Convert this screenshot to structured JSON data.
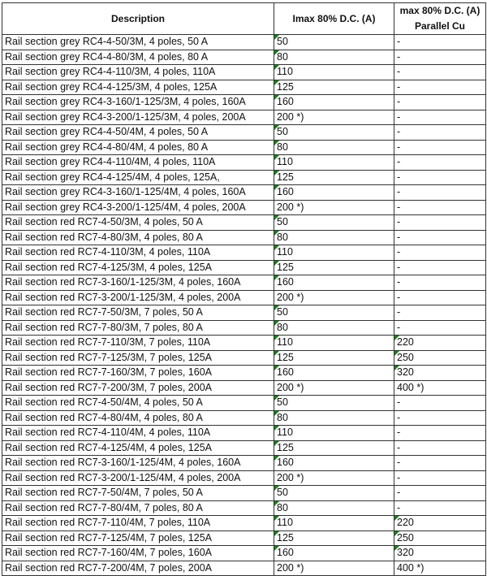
{
  "header": {
    "description": "Description",
    "imax": "Imax 80% D.C. (A)",
    "parallel_line1": "max 80% D.C. (A)",
    "parallel_line2": "Parallel Cu"
  },
  "colors": {
    "number_marker": "#1e7b1e",
    "border": "#333333"
  },
  "rows": [
    {
      "d": "Rail section grey RC4-4-50/3M, 4 poles, 50 A",
      "i": "50",
      "p": "-"
    },
    {
      "d": "Rail section grey RC4-4-80/3M, 4 poles, 80 A",
      "i": "80",
      "p": "-"
    },
    {
      "d": "Rail section grey RC4-4-110/3M, 4 poles, 110A",
      "i": "110",
      "p": "-"
    },
    {
      "d": "Rail section grey RC4-4-125/3M, 4 poles, 125A",
      "i": "125",
      "p": "-"
    },
    {
      "d": "Rail section grey RC4-3-160/1-125/3M, 4 poles, 160A",
      "i": "160",
      "p": "-"
    },
    {
      "d": "Rail section grey RC4-3-200/1-125/3M, 4 poles, 200A",
      "i": "200 *)",
      "p": "-"
    },
    {
      "d": "Rail section grey RC4-4-50/4M, 4 poles, 50 A",
      "i": "50",
      "p": "-"
    },
    {
      "d": "Rail section grey RC4-4-80/4M, 4 poles, 80 A",
      "i": "80",
      "p": "-"
    },
    {
      "d": "Rail section grey RC4-4-110/4M, 4 poles, 110A",
      "i": "110",
      "p": "-"
    },
    {
      "d": "Rail section grey RC4-4-125/4M, 4 poles, 125A,",
      "i": "125",
      "p": "-"
    },
    {
      "d": "Rail section grey RC4-3-160/1-125/4M, 4 poles, 160A",
      "i": "160",
      "p": "-"
    },
    {
      "d": "Rail section grey RC4-3-200/1-125/4M, 4 poles, 200A",
      "i": "200 *)",
      "p": "-"
    },
    {
      "d": "Rail section red RC7-4-50/3M, 4 poles, 50 A",
      "i": "50",
      "p": "-"
    },
    {
      "d": "Rail section red RC7-4-80/3M, 4 poles, 80 A",
      "i": "80",
      "p": "-"
    },
    {
      "d": "Rail section red RC7-4-110/3M, 4 poles, 110A",
      "i": "110",
      "p": "-"
    },
    {
      "d": "Rail section red RC7-4-125/3M, 4 poles, 125A",
      "i": "125",
      "p": "-"
    },
    {
      "d": "Rail section red RC7-3-160/1-125/3M, 4 poles, 160A",
      "i": "160",
      "p": "-"
    },
    {
      "d": "Rail section red RC7-3-200/1-125/3M, 4 poles, 200A",
      "i": "200 *)",
      "p": "-"
    },
    {
      "d": "Rail section red RC7-7-50/3M, 7 poles, 50 A",
      "i": "50",
      "p": "-"
    },
    {
      "d": "Rail section red RC7-7-80/3M, 7 poles, 80 A",
      "i": "80",
      "p": "-"
    },
    {
      "d": "Rail section red RC7-7-110/3M, 7 poles, 110A",
      "i": "110",
      "p": "220"
    },
    {
      "d": "Rail section red RC7-7-125/3M, 7 poles, 125A",
      "i": "125",
      "p": "250"
    },
    {
      "d": "Rail section red RC7-7-160/3M, 7 poles, 160A",
      "i": "160",
      "p": "320"
    },
    {
      "d": "Rail section red RC7-7-200/3M, 7 poles, 200A",
      "i": "200 *)",
      "p": "400 *)"
    },
    {
      "d": "Rail section red RC7-4-50/4M, 4 poles, 50 A",
      "i": "50",
      "p": "-"
    },
    {
      "d": "Rail section red RC7-4-80/4M, 4 poles, 80 A",
      "i": "80",
      "p": "-"
    },
    {
      "d": "Rail section red RC7-4-110/4M, 4 poles, 110A",
      "i": "110",
      "p": "-"
    },
    {
      "d": "Rail section red RC7-4-125/4M, 4 poles, 125A",
      "i": "125",
      "p": "-"
    },
    {
      "d": "Rail section red RC7-3-160/1-125/4M, 4 poles, 160A",
      "i": "160",
      "p": "-"
    },
    {
      "d": "Rail section red RC7-3-200/1-125/4M, 4 poles, 200A",
      "i": "200 *)",
      "p": "-"
    },
    {
      "d": "Rail section red RC7-7-50/4M, 7 poles, 50 A",
      "i": "50",
      "p": "-"
    },
    {
      "d": "Rail section red RC7-7-80/4M, 7 poles, 80 A",
      "i": "80",
      "p": "-"
    },
    {
      "d": "Rail section red RC7-7-110/4M, 7 poles, 110A",
      "i": "110",
      "p": "220"
    },
    {
      "d": "Rail section red RC7-7-125/4M, 7 poles, 125A",
      "i": "125",
      "p": "250"
    },
    {
      "d": "Rail section red RC7-7-160/4M, 7 poles, 160A",
      "i": "160",
      "p": "320"
    },
    {
      "d": "Rail section red RC7-7-200/4M, 7 poles, 200A",
      "i": "200 *)",
      "p": "400 *)"
    }
  ]
}
